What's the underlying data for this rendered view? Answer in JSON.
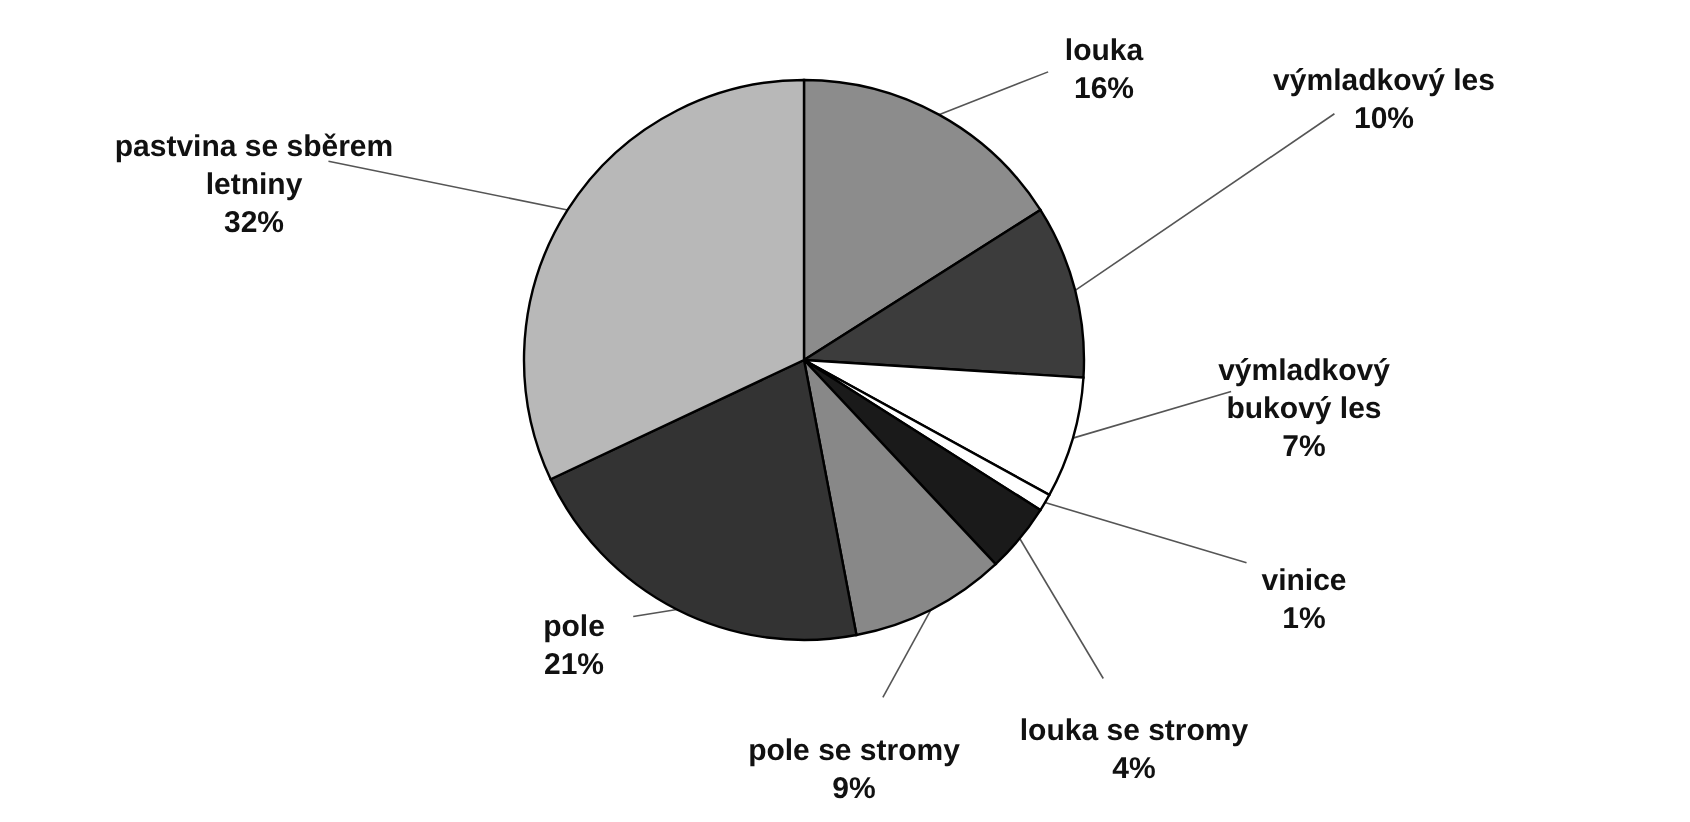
{
  "chart_data": {
    "type": "pie",
    "categories": [
      "louka",
      "výmladkový les",
      "výmladkový bukový les",
      "vinice",
      "louka se stromy",
      "pole se stromy",
      "pole",
      "pastvina se sběrem letniny"
    ],
    "values": [
      16,
      10,
      7,
      1,
      4,
      9,
      21,
      32
    ],
    "value_labels": [
      "16%",
      "10%",
      "7%",
      "1%",
      "4%",
      "9%",
      "21%",
      "32%"
    ],
    "colors": [
      "#8c8c8c",
      "#3c3c3c",
      "#ffffff",
      "#ffffff",
      "#1a1a1a",
      "#888888",
      "#333333",
      "#b8b8b8"
    ]
  }
}
